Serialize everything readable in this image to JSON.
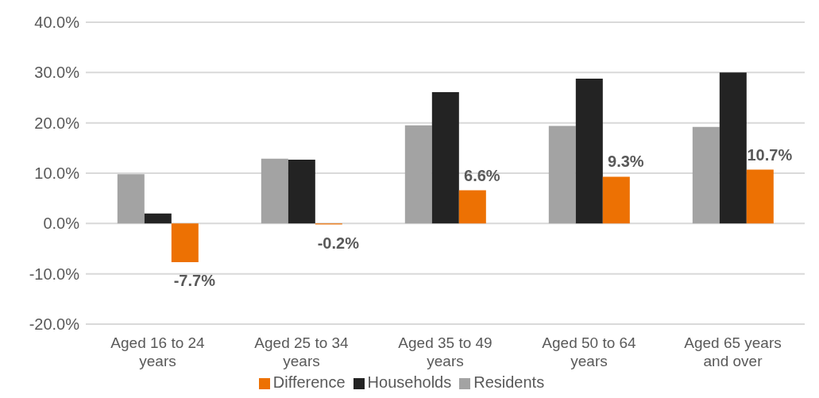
{
  "chart_data": {
    "type": "bar",
    "categories": [
      "Aged 16 to 24 years",
      "Aged 25 to 34 years",
      "Aged 35 to 49 years",
      "Aged 50 to 64 years",
      "Aged 65 years and over"
    ],
    "series": [
      {
        "name": "Residents",
        "color": "#a3a3a3",
        "values": [
          9.8,
          12.9,
          19.5,
          19.4,
          19.2
        ]
      },
      {
        "name": "Households",
        "color": "#232323",
        "values": [
          2.0,
          12.7,
          26.1,
          28.8,
          30.0
        ]
      },
      {
        "name": "Difference",
        "color": "#ed7103",
        "values": [
          -7.7,
          -0.2,
          6.6,
          9.3,
          10.7
        ],
        "value_labels": [
          "-7.7%",
          "-0.2%",
          "6.6%",
          "9.3%",
          "10.7%"
        ]
      }
    ],
    "ylim": [
      -20,
      40
    ],
    "yticks": [
      {
        "value": -20,
        "label": "-20.0%"
      },
      {
        "value": -10,
        "label": "-10.0%"
      },
      {
        "value": 0,
        "label": "0.0%"
      },
      {
        "value": 10,
        "label": "10.0%"
      },
      {
        "value": 20,
        "label": "20.0%"
      },
      {
        "value": 30,
        "label": "30.0%"
      },
      {
        "value": 40,
        "label": "40.0%"
      }
    ],
    "grid": "y",
    "legend": "bottom"
  }
}
